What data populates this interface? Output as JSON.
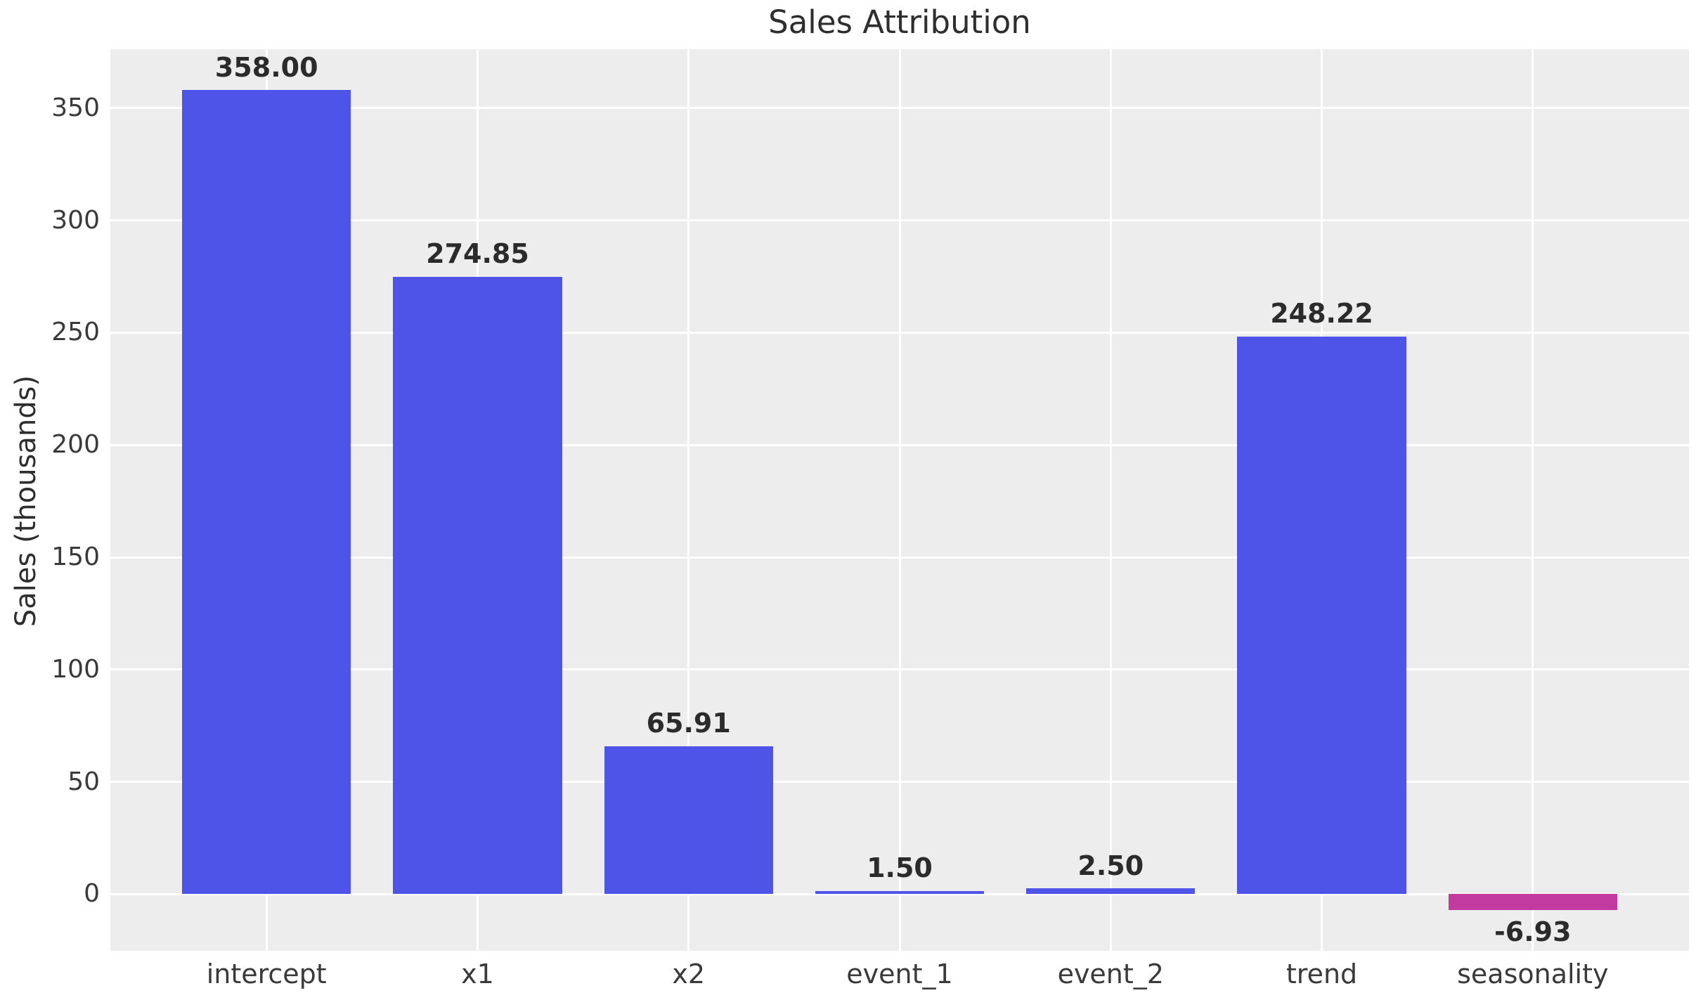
{
  "chart_data": {
    "type": "bar",
    "title": "Sales Attribution",
    "xlabel": "",
    "ylabel": "Sales (thousands)",
    "categories": [
      "intercept",
      "x1",
      "x2",
      "event_1",
      "event_2",
      "trend",
      "seasonality"
    ],
    "values": [
      358.0,
      274.85,
      65.91,
      1.5,
      2.5,
      248.22,
      -6.93
    ],
    "bar_labels": [
      "358.00",
      "274.85",
      "65.91",
      "1.50",
      "2.50",
      "248.22",
      "-6.93"
    ],
    "yticks": [
      0,
      50,
      100,
      150,
      200,
      250,
      300,
      350
    ],
    "ylim": [
      -25.2,
      376.2
    ],
    "xlim": [
      -0.74,
      6.74
    ],
    "bar_width": 0.8,
    "grid": true,
    "legend": "none",
    "colors": {
      "positive_bar": "#4f54e8",
      "negative_bar": "#c23a9e",
      "plot_background": "#ededed",
      "figure_background": "#ffffff",
      "gridline": "#ffffff",
      "label_text": "#2b2b2b",
      "tick_text": "#3a3a3a"
    }
  }
}
